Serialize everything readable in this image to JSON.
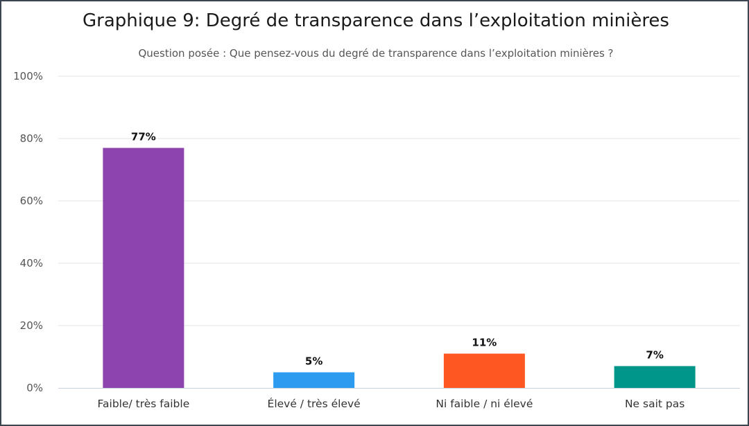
{
  "chart_data": {
    "type": "bar",
    "title": "Graphique 9: Degré de transparence dans l’exploitation minières",
    "subtitle": "Question posée : Que pensez-vous du degré de transparence dans l’exploitation minières ?",
    "categories": [
      "Faible/ très faible",
      "Élevé / très élevé",
      "Ni faible / ni élevé",
      "Ne sait pas"
    ],
    "values": [
      77,
      5,
      11,
      7
    ],
    "data_labels": [
      "77%",
      "5%",
      "11%",
      "7%"
    ],
    "colors": [
      "#8e44ad",
      "#2d9cf0",
      "#ff5722",
      "#00968a"
    ],
    "ylim": [
      0,
      100
    ],
    "yticks": [
      0,
      20,
      40,
      60,
      80,
      100
    ],
    "ytick_labels": [
      "0%",
      "20%",
      "40%",
      "60%",
      "80%",
      "100%"
    ],
    "xlabel": "",
    "ylabel": "",
    "grid": true,
    "legend": "none"
  }
}
